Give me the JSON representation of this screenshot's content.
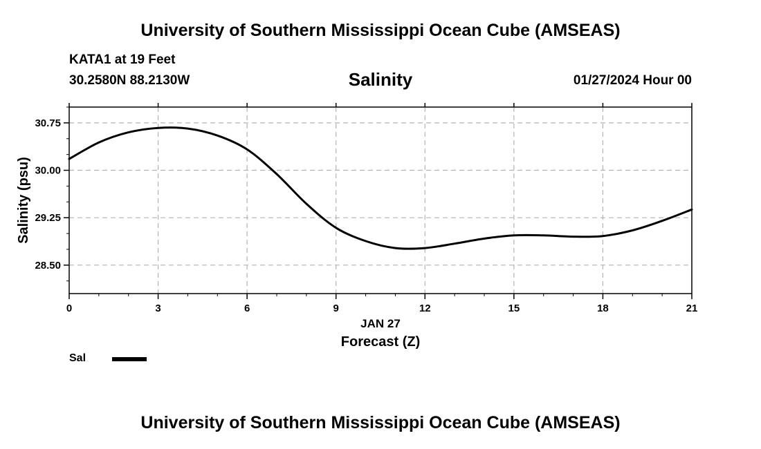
{
  "header": {
    "title_top": "University of Southern Mississippi Ocean Cube (AMSEAS)",
    "station": "KATA1 at 19 Feet",
    "coords": "30.2580N  88.2130W",
    "date": "01/27/2024 Hour 00"
  },
  "footer": {
    "title_bottom": "University of Southern Mississippi Ocean Cube (AMSEAS)"
  },
  "legend": {
    "label": "Sal",
    "color": "#000000"
  },
  "chart_data": {
    "type": "line",
    "title": "Salinity",
    "xlabel": "Forecast (Z)",
    "xlabel_date": "JAN 27",
    "ylabel": "Salinity (psu)",
    "xlim": [
      0,
      21
    ],
    "ylim": [
      28.05,
      31.0
    ],
    "x_ticks": [
      0,
      3,
      6,
      9,
      12,
      15,
      18,
      21
    ],
    "x_tick_labels": [
      "0",
      "3",
      "6",
      "9",
      "12",
      "15",
      "18",
      "21"
    ],
    "y_ticks": [
      28.5,
      29.25,
      30.0,
      30.75
    ],
    "y_tick_labels": [
      "28.50",
      "29.25",
      "30.00",
      "30.75"
    ],
    "grid": true,
    "series": [
      {
        "name": "Sal",
        "color": "#000000",
        "x": [
          0,
          1,
          2,
          3,
          4,
          5,
          6,
          7,
          8,
          9,
          10,
          11,
          12,
          13,
          14,
          15,
          16,
          17,
          18,
          19,
          20,
          21
        ],
        "values": [
          30.18,
          30.44,
          30.6,
          30.67,
          30.66,
          30.55,
          30.33,
          29.94,
          29.47,
          29.09,
          28.88,
          28.77,
          28.77,
          28.84,
          28.92,
          28.97,
          28.97,
          28.95,
          28.96,
          29.05,
          29.2,
          29.38
        ]
      }
    ]
  }
}
